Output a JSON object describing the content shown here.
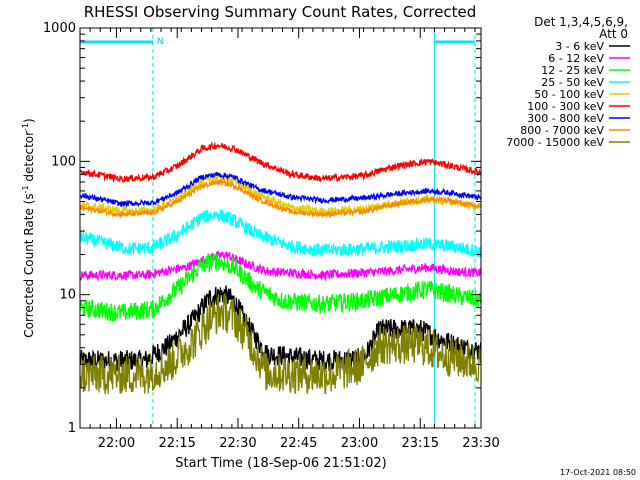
{
  "chart_data": {
    "type": "line",
    "title": "RHESSI Observing Summary Count Rates, Corrected",
    "ylabel_main": "Corrected Count Rate (s",
    "ylabel_sup1": "-1",
    "ylabel_mid": " detector",
    "ylabel_sup2": "-1",
    "ylabel_end": ")",
    "xlabel": "Start Time (18-Sep-06 21:51:02)",
    "y_scale": "log",
    "ylim": [
      1,
      1000
    ],
    "y_ticks": [
      {
        "value": 1,
        "label": "1"
      },
      {
        "value": 10,
        "label": "10"
      },
      {
        "value": 100,
        "label": "100"
      },
      {
        "value": 1000,
        "label": "1000"
      }
    ],
    "xlim_minutes_after_start": [
      0,
      99
    ],
    "x_ticks": [
      {
        "minute": 9,
        "label": "22:00"
      },
      {
        "minute": 24,
        "label": "22:15"
      },
      {
        "minute": 39,
        "label": "22:30"
      },
      {
        "minute": 54,
        "label": "22:45"
      },
      {
        "minute": 69,
        "label": "23:00"
      },
      {
        "minute": 84,
        "label": "23:15"
      },
      {
        "minute": 99,
        "label": "23:30"
      }
    ],
    "legend_header": [
      "Det 1,3,4,5,6,9,",
      "Att 0"
    ],
    "legend_placement": "right",
    "flag_label": "N",
    "night_intervals_minutes": [
      [
        0,
        18
      ],
      [
        87.5,
        97.5
      ]
    ],
    "footer_date": "17-Oct-2021 08:50",
    "series": [
      {
        "name": "3 - 6 keV",
        "color": "#000000",
        "noise": 0.08,
        "points": [
          [
            0,
            3.2
          ],
          [
            16,
            3.2
          ],
          [
            22,
            4.2
          ],
          [
            28,
            6.5
          ],
          [
            32,
            9.5
          ],
          [
            35,
            10.2
          ],
          [
            38,
            9.0
          ],
          [
            42,
            5.5
          ],
          [
            46,
            3.6
          ],
          [
            60,
            3.2
          ],
          [
            70,
            3.3
          ],
          [
            74,
            5.5
          ],
          [
            84,
            5.5
          ],
          [
            90,
            4.5
          ],
          [
            95,
            4.0
          ],
          [
            99,
            3.8
          ]
        ]
      },
      {
        "name": "6 - 12 keV",
        "color": "#ff00ff",
        "noise": 0.035,
        "points": [
          [
            0,
            14
          ],
          [
            16,
            14
          ],
          [
            26,
            16
          ],
          [
            32,
            19
          ],
          [
            36,
            20
          ],
          [
            40,
            17.5
          ],
          [
            46,
            15
          ],
          [
            60,
            14
          ],
          [
            76,
            15
          ],
          [
            86,
            16
          ],
          [
            92,
            15
          ],
          [
            99,
            14.5
          ]
        ]
      },
      {
        "name": "12 - 25 keV",
        "color": "#00ff00",
        "noise": 0.07,
        "points": [
          [
            0,
            8
          ],
          [
            10,
            7.3
          ],
          [
            18,
            7.8
          ],
          [
            24,
            11
          ],
          [
            30,
            16.5
          ],
          [
            34,
            18
          ],
          [
            38,
            16
          ],
          [
            44,
            11
          ],
          [
            50,
            9
          ],
          [
            60,
            8.5
          ],
          [
            70,
            9
          ],
          [
            78,
            10
          ],
          [
            86,
            11
          ],
          [
            92,
            10
          ],
          [
            99,
            9
          ]
        ]
      },
      {
        "name": "25 - 50 keV",
        "color": "#00ffff",
        "noise": 0.05,
        "points": [
          [
            0,
            27
          ],
          [
            12,
            22
          ],
          [
            18,
            22.5
          ],
          [
            24,
            28
          ],
          [
            30,
            38
          ],
          [
            34,
            40
          ],
          [
            38,
            36
          ],
          [
            44,
            28
          ],
          [
            52,
            23
          ],
          [
            60,
            21.5
          ],
          [
            70,
            22
          ],
          [
            78,
            23
          ],
          [
            86,
            24
          ],
          [
            92,
            23
          ],
          [
            99,
            21
          ]
        ]
      },
      {
        "name": "50 - 100 keV",
        "color": "#e0d000",
        "noise": 0.03,
        "points": [
          [
            0,
            47
          ],
          [
            12,
            42
          ],
          [
            18,
            43
          ],
          [
            24,
            52
          ],
          [
            30,
            70
          ],
          [
            34,
            76
          ],
          [
            38,
            72
          ],
          [
            44,
            56
          ],
          [
            52,
            45
          ],
          [
            60,
            42
          ],
          [
            70,
            44
          ],
          [
            78,
            49
          ],
          [
            86,
            52
          ],
          [
            92,
            50
          ],
          [
            99,
            45
          ]
        ]
      },
      {
        "name": "100 - 300 keV",
        "color": "#ff0000",
        "noise": 0.025,
        "points": [
          [
            0,
            84
          ],
          [
            10,
            74
          ],
          [
            18,
            76
          ],
          [
            24,
            92
          ],
          [
            30,
            124
          ],
          [
            34,
            132
          ],
          [
            38,
            125
          ],
          [
            44,
            100
          ],
          [
            52,
            80
          ],
          [
            60,
            74
          ],
          [
            70,
            78
          ],
          [
            78,
            92
          ],
          [
            86,
            100
          ],
          [
            92,
            92
          ],
          [
            99,
            82
          ]
        ]
      },
      {
        "name": "300 - 800 keV",
        "color": "#0000ff",
        "noise": 0.02,
        "points": [
          [
            0,
            56
          ],
          [
            10,
            48
          ],
          [
            18,
            49
          ],
          [
            24,
            58
          ],
          [
            30,
            76
          ],
          [
            34,
            80
          ],
          [
            38,
            76
          ],
          [
            44,
            62
          ],
          [
            52,
            54
          ],
          [
            60,
            51
          ],
          [
            70,
            53
          ],
          [
            78,
            57
          ],
          [
            86,
            60
          ],
          [
            92,
            58
          ],
          [
            99,
            53
          ]
        ]
      },
      {
        "name": "800 - 7000 keV",
        "color": "#ff8800",
        "noise": 0.02,
        "points": [
          [
            0,
            45
          ],
          [
            10,
            40
          ],
          [
            18,
            41
          ],
          [
            24,
            50
          ],
          [
            30,
            65
          ],
          [
            34,
            70
          ],
          [
            38,
            66
          ],
          [
            44,
            52
          ],
          [
            52,
            42
          ],
          [
            60,
            40
          ],
          [
            70,
            42
          ],
          [
            78,
            48
          ],
          [
            86,
            52
          ],
          [
            92,
            50
          ],
          [
            99,
            45
          ]
        ]
      },
      {
        "name": "7000 - 15000 keV",
        "color": "#808000",
        "noise": 0.15,
        "points": [
          [
            0,
            2.5
          ],
          [
            16,
            2.5
          ],
          [
            22,
            3.0
          ],
          [
            28,
            4.5
          ],
          [
            32,
            6.5
          ],
          [
            35,
            7.5
          ],
          [
            38,
            6.8
          ],
          [
            42,
            4.5
          ],
          [
            46,
            2.6
          ],
          [
            62,
            2.5
          ],
          [
            70,
            3.0
          ],
          [
            74,
            4.2
          ],
          [
            84,
            4.2
          ],
          [
            90,
            3.5
          ],
          [
            95,
            3.2
          ],
          [
            99,
            3.0
          ]
        ]
      }
    ]
  }
}
